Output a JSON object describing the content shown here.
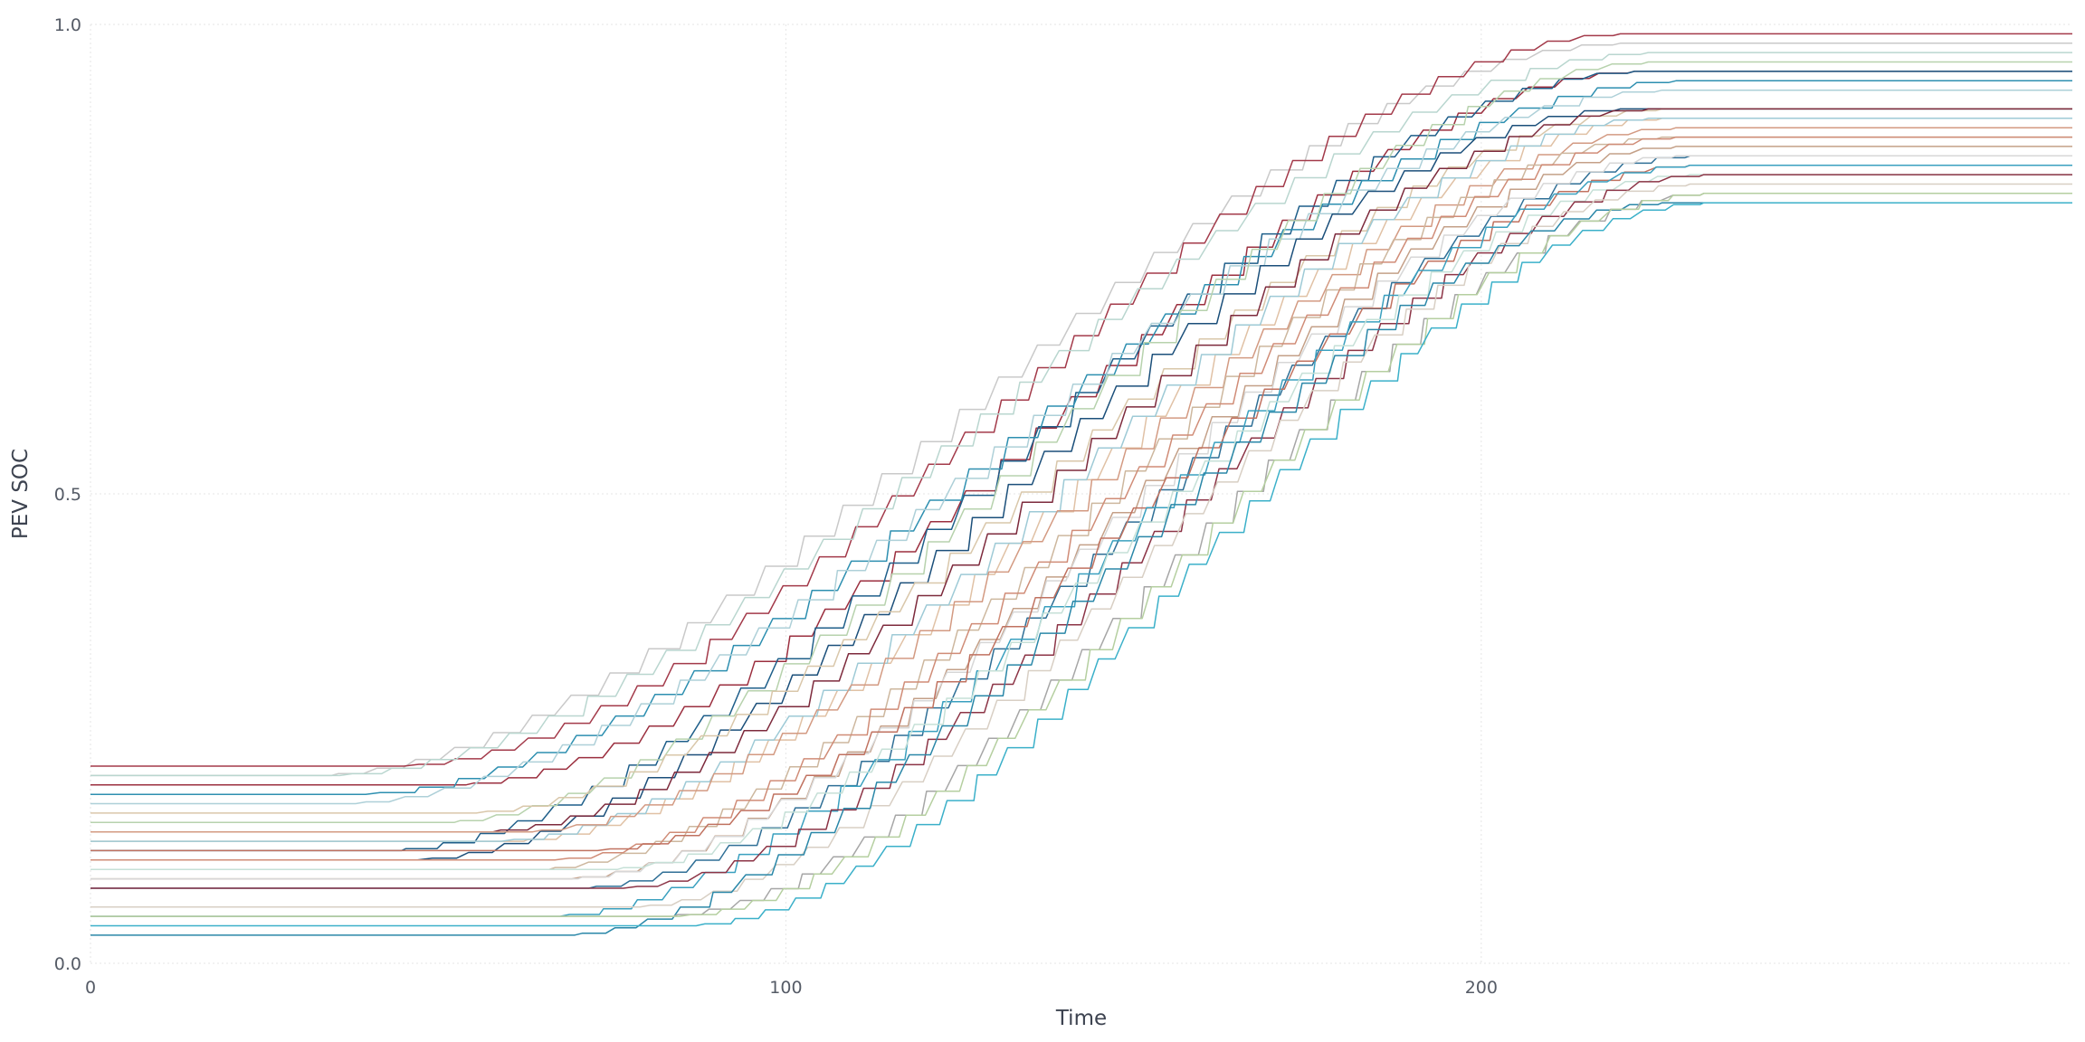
{
  "chart_data": {
    "type": "line",
    "title": "",
    "xlabel": "Time",
    "ylabel": "PEV SOC",
    "xlim": [
      0,
      285
    ],
    "ylim": [
      0,
      1
    ],
    "x_ticks": [
      {
        "value": 0,
        "label": "0"
      },
      {
        "value": 100,
        "label": "100"
      },
      {
        "value": 200,
        "label": "200"
      }
    ],
    "y_ticks": [
      {
        "value": 0,
        "label": "0.0"
      },
      {
        "value": 0.5,
        "label": "0.5"
      },
      {
        "value": 1,
        "label": "1.0"
      }
    ],
    "grid": true,
    "legend": "none",
    "step_count": 34,
    "series": [
      {
        "color": "#c9c9c9",
        "start": 0.2,
        "final": 0.98,
        "t_start": 30,
        "t_end": 220
      },
      {
        "color": "#a33a4a",
        "start": 0.21,
        "final": 0.99,
        "t_start": 42,
        "t_end": 220
      },
      {
        "color": "#b9d6cf",
        "start": 0.2,
        "final": 0.97,
        "t_start": 32,
        "t_end": 224
      },
      {
        "color": "#9b2f3f",
        "start": 0.19,
        "final": 0.95,
        "t_start": 50,
        "t_end": 222
      },
      {
        "color": "#1f5f8a",
        "start": 0.12,
        "final": 0.95,
        "t_start": 40,
        "t_end": 222
      },
      {
        "color": "#2d8fb0",
        "start": 0.18,
        "final": 0.94,
        "t_start": 36,
        "t_end": 228
      },
      {
        "color": "#aed0d8",
        "start": 0.17,
        "final": 0.93,
        "t_start": 34,
        "t_end": 226
      },
      {
        "color": "#b7d2ad",
        "start": 0.15,
        "final": 0.96,
        "t_start": 48,
        "t_end": 224
      },
      {
        "color": "#1b4f7a",
        "start": 0.11,
        "final": 0.91,
        "t_start": 44,
        "t_end": 220
      },
      {
        "color": "#d9c7aa",
        "start": 0.16,
        "final": 0.91,
        "t_start": 52,
        "t_end": 226
      },
      {
        "color": "#7d2a3c",
        "start": 0.14,
        "final": 0.91,
        "t_start": 54,
        "t_end": 224
      },
      {
        "color": "#e0c1a5",
        "start": 0.13,
        "final": 0.9,
        "t_start": 58,
        "t_end": 226
      },
      {
        "color": "#9ecad6",
        "start": 0.13,
        "final": 0.9,
        "t_start": 56,
        "t_end": 224
      },
      {
        "color": "#d39a82",
        "start": 0.14,
        "final": 0.89,
        "t_start": 60,
        "t_end": 228
      },
      {
        "color": "#cdb79e",
        "start": 0.1,
        "final": 0.88,
        "t_start": 62,
        "t_end": 226
      },
      {
        "color": "#d08c77",
        "start": 0.11,
        "final": 0.88,
        "t_start": 64,
        "t_end": 228
      },
      {
        "color": "#c4a088",
        "start": 0.09,
        "final": 0.87,
        "t_start": 66,
        "t_end": 228
      },
      {
        "color": "#2f6f96",
        "start": 0.08,
        "final": 0.86,
        "t_start": 68,
        "t_end": 230
      },
      {
        "color": "#d7d7d7",
        "start": 0.09,
        "final": 0.86,
        "t_start": 66,
        "t_end": 228
      },
      {
        "color": "#c07260",
        "start": 0.12,
        "final": 0.85,
        "t_start": 70,
        "t_end": 230
      },
      {
        "color": "#3aa0bf",
        "start": 0.05,
        "final": 0.85,
        "t_start": 64,
        "t_end": 230
      },
      {
        "color": "#c6e0d7",
        "start": 0.1,
        "final": 0.84,
        "t_start": 72,
        "t_end": 230
      },
      {
        "color": "#8c3446",
        "start": 0.08,
        "final": 0.84,
        "t_start": 74,
        "t_end": 232
      },
      {
        "color": "#d8cfc4",
        "start": 0.06,
        "final": 0.83,
        "t_start": 76,
        "t_end": 230
      },
      {
        "color": "#2a87a8",
        "start": 0.03,
        "final": 0.81,
        "t_start": 66,
        "t_end": 226
      },
      {
        "color": "#a6a6a6",
        "start": 0.05,
        "final": 0.82,
        "t_start": 80,
        "t_end": 232
      },
      {
        "color": "#b5cfa0",
        "start": 0.05,
        "final": 0.82,
        "t_start": 82,
        "t_end": 232
      },
      {
        "color": "#3bb0c9",
        "start": 0.04,
        "final": 0.81,
        "t_start": 84,
        "t_end": 232
      }
    ]
  }
}
